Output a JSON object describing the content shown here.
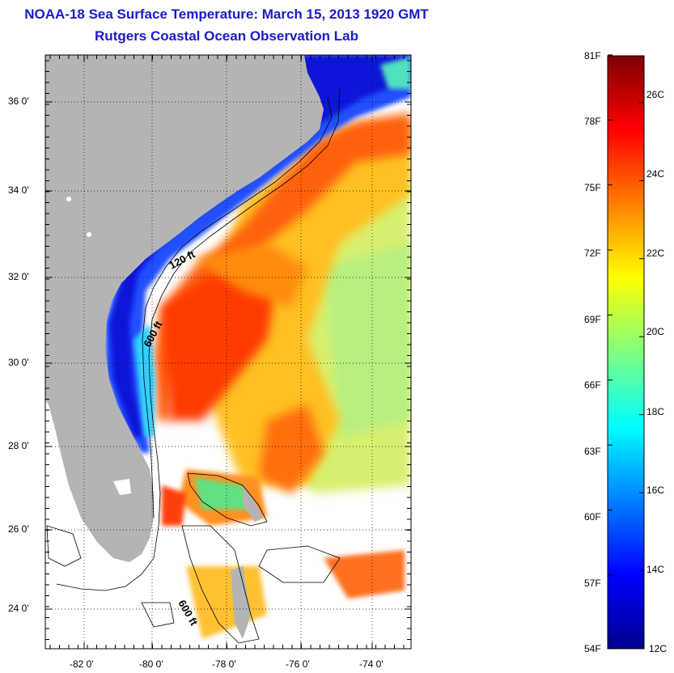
{
  "title": "NOAA-18 Sea Surface Temperature:  March 15, 2013 1920 GMT",
  "subtitle": "Rutgers Coastal Ocean Observation Lab",
  "map": {
    "latitude_labels": [
      "36 0'",
      "34 0'",
      "32 0'",
      "30 0'",
      "28 0'",
      "26 0'",
      "24 0'"
    ],
    "longitude_labels": [
      "-82 0'",
      "-80 0'",
      "-78 0'",
      "-76 0'",
      "-74 0'"
    ],
    "isobath_labels": [
      "120 ft",
      "600 ft",
      "600 ft"
    ],
    "land_color": "#b4b4b4",
    "no_data_color": "#ffffff"
  },
  "colorbar": {
    "fahrenheit_labels": [
      "81F",
      "78F",
      "75F",
      "72F",
      "69F",
      "66F",
      "63F",
      "60F",
      "57F",
      "54F"
    ],
    "celsius_labels": [
      "26C",
      "24C",
      "22C",
      "20C",
      "18C",
      "16C",
      "14C",
      "12C"
    ],
    "colormap": "jet",
    "min_c": 12,
    "max_c": 27.2
  }
}
